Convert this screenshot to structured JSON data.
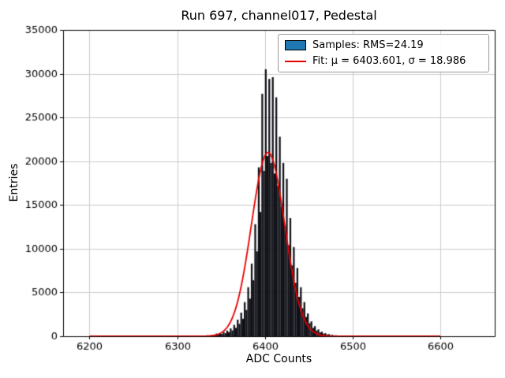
{
  "chart_data": {
    "type": "bar",
    "subtype": "histogram_with_gaussian_fit",
    "title": "Run 697, channel017, Pedestal",
    "xlabel": "ADC Counts",
    "ylabel": "Entries",
    "xlim": [
      6170,
      6662
    ],
    "ylim": [
      0,
      35000
    ],
    "x_ticks": [
      6200,
      6300,
      6400,
      6500,
      6600
    ],
    "y_ticks": [
      0,
      5000,
      10000,
      15000,
      20000,
      25000,
      30000,
      35000
    ],
    "grid": true,
    "bins": {
      "start": 6300,
      "width": 2,
      "count": 100
    },
    "counts": [
      15,
      10,
      18,
      12,
      20,
      15,
      25,
      18,
      30,
      22,
      40,
      28,
      50,
      36,
      60,
      78,
      58,
      100,
      76,
      140,
      105,
      185,
      300,
      210,
      380,
      265,
      480,
      345,
      650,
      470,
      900,
      660,
      1300,
      960,
      1900,
      1420,
      2700,
      2000,
      3900,
      3000,
      5600,
      4300,
      8300,
      6400,
      12800,
      9700,
      19300,
      14200,
      27700,
      18900,
      30500,
      20600,
      29400,
      19800,
      29600,
      18600,
      27300,
      17200,
      22800,
      14800,
      19800,
      12600,
      18000,
      10400,
      13500,
      8100,
      10200,
      6100,
      7800,
      4500,
      5600,
      3200,
      3900,
      2200,
      2600,
      1500,
      1700,
      950,
      1150,
      640,
      780,
      430,
      520,
      290,
      350,
      195,
      240,
      130,
      165,
      90,
      115,
      60,
      80,
      42,
      55,
      28,
      38,
      18,
      26,
      14
    ],
    "samples_rms": 24.19,
    "fit": {
      "type": "gaussian",
      "mu": 6403.601,
      "sigma": 18.986,
      "amplitude": 21000,
      "x_range": [
        6200,
        6600
      ],
      "color": "#e60000"
    },
    "legend": {
      "position": "upper right",
      "entries": [
        {
          "label": "Samples: RMS=24.19",
          "swatch": "patch",
          "color": "#1f77b4"
        },
        {
          "label": "Fit: μ = 6403.601, σ = 18.986",
          "swatch": "line",
          "color": "#e60000"
        }
      ]
    },
    "colors": {
      "bar_fill": "#0e0e16",
      "grid": "#cccccc",
      "axis": "#000000",
      "background": "#ffffff",
      "fit_line": "#e60000"
    }
  }
}
